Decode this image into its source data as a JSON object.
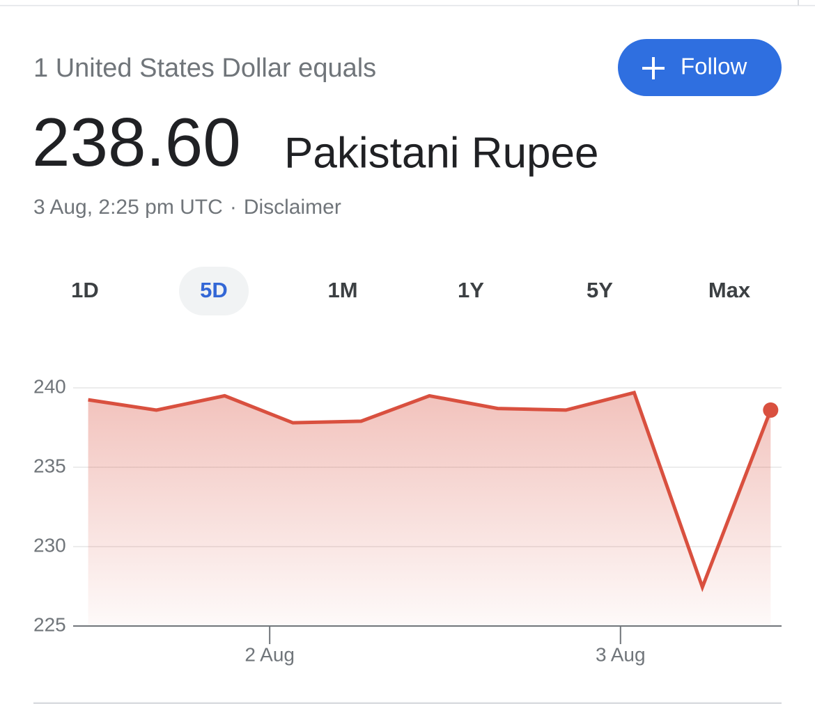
{
  "header": {
    "subtitle": "1 United States Dollar equals",
    "follow_button": "Follow",
    "rate": "238.60",
    "currency": "Pakistani Rupee",
    "timestamp": "3 Aug, 2:25 pm UTC",
    "separator": "·",
    "disclaimer": "Disclaimer"
  },
  "ranges": [
    "1D",
    "5D",
    "1M",
    "1Y",
    "5Y",
    "Max"
  ],
  "selected_range": 1,
  "chart_data": {
    "type": "line",
    "x": [
      0,
      1,
      2,
      3,
      4,
      5,
      6,
      7,
      8,
      9,
      10
    ],
    "values": [
      239.25,
      238.6,
      239.5,
      237.8,
      237.9,
      239.5,
      238.7,
      238.6,
      239.7,
      227.45,
      238.6
    ],
    "color": "#d9503f",
    "xlim": [
      -0.22,
      10.16
    ],
    "xticks": [
      {
        "value": 2.66,
        "label": "2 Aug"
      },
      {
        "value": 7.8,
        "label": "3 Aug"
      }
    ],
    "ylim": [
      225,
      240
    ],
    "yticks": [
      225,
      230,
      235,
      240
    ],
    "grid": true
  }
}
